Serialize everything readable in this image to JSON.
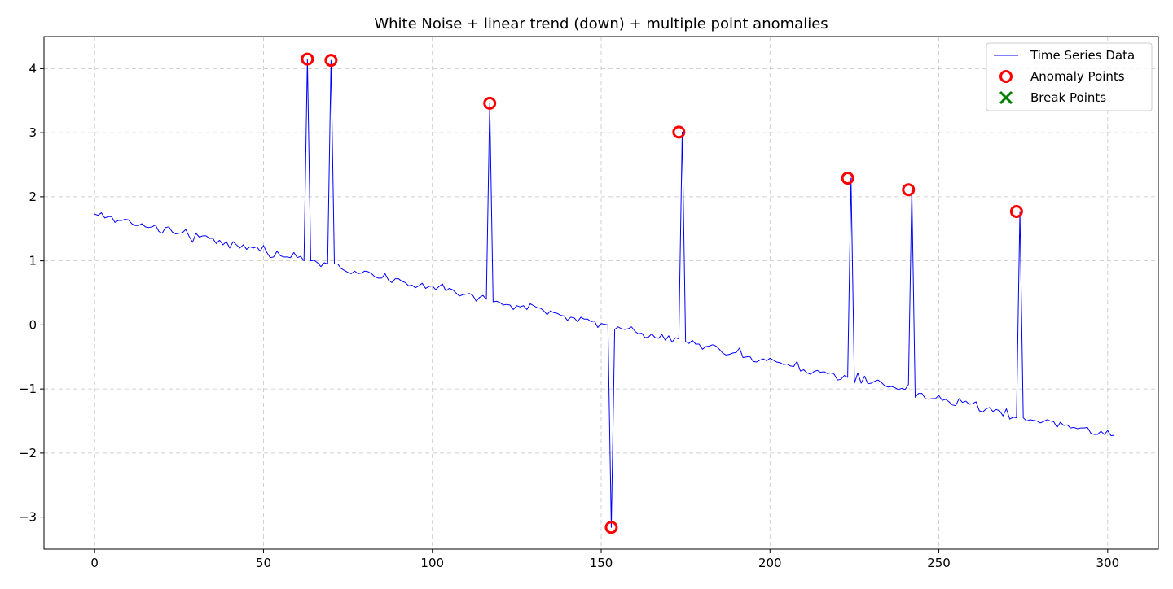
{
  "chart_data": {
    "type": "line",
    "title": "White Noise + linear trend (down) + multiple point anomalies",
    "xlabel": "",
    "ylabel": "",
    "xlim": [
      -15,
      315
    ],
    "ylim": [
      -3.5,
      4.5
    ],
    "xticks": [
      0,
      50,
      100,
      150,
      200,
      250,
      300
    ],
    "yticks": [
      -3,
      -2,
      -1,
      0,
      1,
      2,
      3,
      4
    ],
    "xtick_labels": [
      "0",
      "50",
      "100",
      "150",
      "200",
      "250",
      "300"
    ],
    "ytick_labels": [
      "−3",
      "−2",
      "−1",
      "0",
      "1",
      "2",
      "3",
      "4"
    ],
    "grid": true,
    "legend_position": "top-right",
    "legend": [
      {
        "label": "Time Series Data",
        "marker": "line",
        "color": "#0000ff"
      },
      {
        "label": "Anomaly Points",
        "marker": "circle",
        "color": "#ff0000"
      },
      {
        "label": "Break Points",
        "marker": "x",
        "color": "#008000"
      }
    ],
    "series": [
      {
        "name": "Time Series Data",
        "color": "#0000ff",
        "x_start": 0,
        "x_step": 1,
        "values": [
          1.73,
          1.71,
          1.75,
          1.67,
          1.69,
          1.69,
          1.6,
          1.63,
          1.63,
          1.65,
          1.64,
          1.58,
          1.55,
          1.55,
          1.58,
          1.53,
          1.52,
          1.53,
          1.56,
          1.46,
          1.43,
          1.52,
          1.53,
          1.45,
          1.42,
          1.43,
          1.44,
          1.49,
          1.38,
          1.29,
          1.43,
          1.37,
          1.39,
          1.39,
          1.35,
          1.35,
          1.27,
          1.32,
          1.25,
          1.3,
          1.2,
          1.3,
          1.25,
          1.2,
          1.25,
          1.18,
          1.22,
          1.2,
          1.22,
          1.15,
          1.24,
          1.13,
          1.05,
          1.06,
          1.15,
          1.08,
          1.06,
          1.06,
          1.05,
          1.13,
          1.05,
          1.07,
          1.0,
          4.15,
          1.0,
          1.01,
          0.97,
          0.91,
          0.97,
          0.95,
          4.13,
          0.95,
          0.95,
          0.88,
          0.85,
          0.82,
          0.8,
          0.84,
          0.8,
          0.81,
          0.84,
          0.83,
          0.8,
          0.75,
          0.73,
          0.73,
          0.8,
          0.7,
          0.66,
          0.72,
          0.72,
          0.68,
          0.66,
          0.61,
          0.62,
          0.58,
          0.61,
          0.65,
          0.57,
          0.6,
          0.61,
          0.55,
          0.6,
          0.64,
          0.53,
          0.57,
          0.55,
          0.5,
          0.45,
          0.47,
          0.48,
          0.49,
          0.46,
          0.37,
          0.43,
          0.46,
          0.4,
          3.46,
          0.36,
          0.37,
          0.35,
          0.31,
          0.32,
          0.31,
          0.24,
          0.3,
          0.28,
          0.3,
          0.24,
          0.33,
          0.3,
          0.27,
          0.26,
          0.22,
          0.16,
          0.22,
          0.19,
          0.18,
          0.15,
          0.14,
          0.07,
          0.12,
          0.11,
          0.05,
          0.12,
          0.09,
          0.09,
          0.05,
          0.06,
          -0.04,
          0.02,
          0.01,
          0.0,
          -3.16,
          -0.07,
          -0.03,
          -0.06,
          -0.07,
          -0.06,
          -0.03,
          -0.1,
          -0.14,
          -0.13,
          -0.2,
          -0.19,
          -0.14,
          -0.2,
          -0.21,
          -0.15,
          -0.24,
          -0.17,
          -0.27,
          -0.2,
          -0.22,
          3.01,
          -0.26,
          -0.29,
          -0.24,
          -0.3,
          -0.3,
          -0.38,
          -0.34,
          -0.33,
          -0.31,
          -0.33,
          -0.38,
          -0.44,
          -0.47,
          -0.46,
          -0.44,
          -0.43,
          -0.36,
          -0.51,
          -0.5,
          -0.49,
          -0.57,
          -0.58,
          -0.55,
          -0.53,
          -0.56,
          -0.52,
          -0.55,
          -0.58,
          -0.59,
          -0.62,
          -0.61,
          -0.64,
          -0.65,
          -0.57,
          -0.72,
          -0.7,
          -0.75,
          -0.77,
          -0.73,
          -0.71,
          -0.74,
          -0.73,
          -0.76,
          -0.75,
          -0.77,
          -0.86,
          -0.85,
          -0.79,
          -0.82,
          2.29,
          -0.91,
          -0.75,
          -0.91,
          -0.8,
          -0.92,
          -0.91,
          -0.88,
          -0.86,
          -0.9,
          -0.95,
          -0.97,
          -0.96,
          -0.98,
          -1.01,
          -0.99,
          -1.01,
          -0.93,
          2.11,
          -1.13,
          -1.07,
          -1.07,
          -1.15,
          -1.16,
          -1.15,
          -1.15,
          -1.1,
          -1.18,
          -1.16,
          -1.2,
          -1.25,
          -1.26,
          -1.15,
          -1.21,
          -1.19,
          -1.24,
          -1.23,
          -1.2,
          -1.34,
          -1.36,
          -1.31,
          -1.29,
          -1.35,
          -1.32,
          -1.34,
          -1.42,
          -1.31,
          -1.47,
          -1.44,
          -1.45,
          1.77,
          -1.45,
          -1.5,
          -1.48,
          -1.49,
          -1.5,
          -1.53,
          -1.51,
          -1.48,
          -1.5,
          -1.51,
          -1.6,
          -1.52,
          -1.57,
          -1.56,
          -1.61,
          -1.6,
          -1.62,
          -1.61,
          -1.61,
          -1.6,
          -1.69,
          -1.71,
          -1.71,
          -1.66,
          -1.71,
          -1.65,
          -1.73,
          -1.72
        ]
      }
    ],
    "anomaly_points": {
      "name": "Anomaly Points",
      "color": "#ff0000",
      "x": [
        63,
        70,
        117,
        153,
        173,
        223,
        241,
        273
      ],
      "y": [
        4.15,
        4.13,
        3.46,
        -3.16,
        3.01,
        2.29,
        2.11,
        1.77
      ]
    },
    "break_points": {
      "name": "Break Points",
      "color": "#008000",
      "x": [],
      "y": []
    }
  }
}
